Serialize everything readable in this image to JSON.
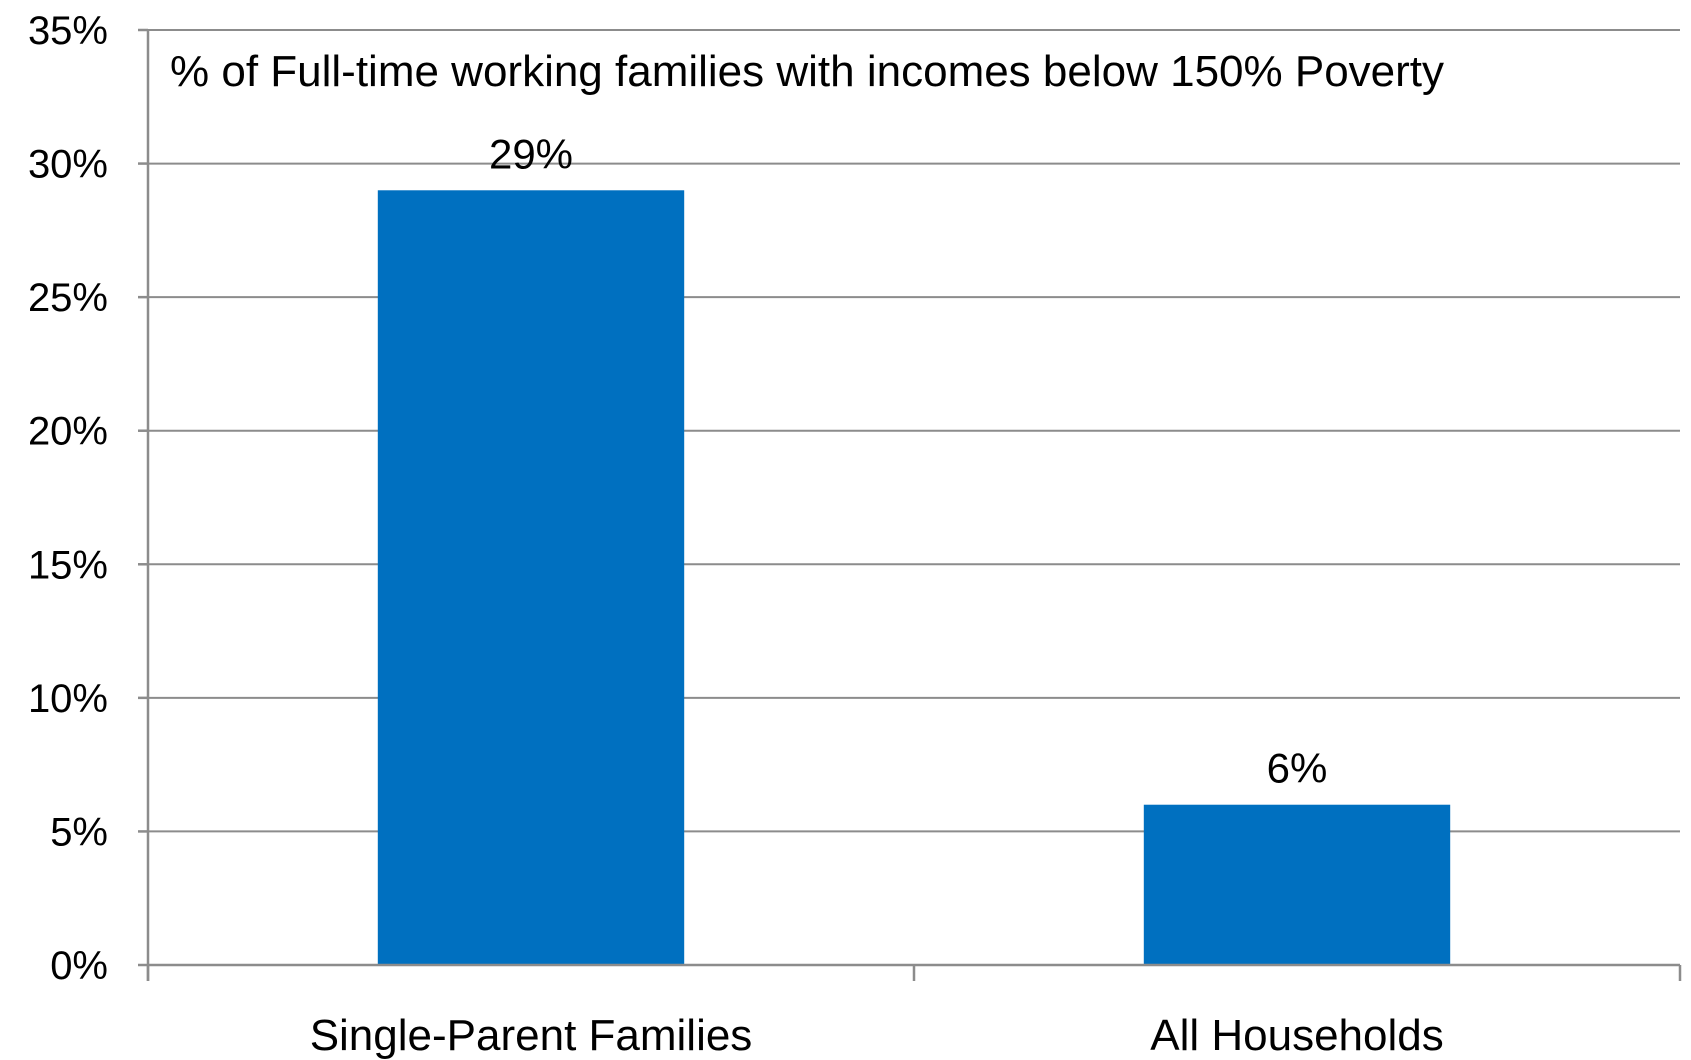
{
  "chart_data": {
    "type": "bar",
    "title": "% of Full-time working families with incomes below 150% Poverty",
    "categories": [
      "Single-Parent Families",
      "All Households"
    ],
    "values": [
      29,
      6
    ],
    "data_labels": [
      "29%",
      "6%"
    ],
    "ylim": [
      0,
      35
    ],
    "yticks": [
      0,
      5,
      10,
      15,
      20,
      25,
      30,
      35
    ],
    "ytick_labels": [
      "0%",
      "5%",
      "10%",
      "15%",
      "20%",
      "25%",
      "30%",
      "35%"
    ],
    "xlabel": "",
    "ylabel": "",
    "grid": true,
    "legend": "none",
    "colors": {
      "bar": "#0070C0"
    }
  }
}
